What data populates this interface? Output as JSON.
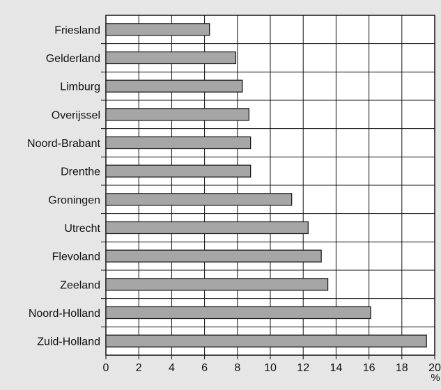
{
  "chart_data": {
    "type": "bar",
    "orientation": "horizontal",
    "categories": [
      "Friesland",
      "Gelderland",
      "Limburg",
      "Overijssel",
      "Noord-Brabant",
      "Drenthe",
      "Groningen",
      "Utrecht",
      "Flevoland",
      "Zeeland",
      "Noord-Holland",
      "Zuid-Holland"
    ],
    "values": [
      6.3,
      7.9,
      8.3,
      8.7,
      8.8,
      8.8,
      11.3,
      12.3,
      13.1,
      13.5,
      16.1,
      19.5
    ],
    "title": "",
    "xlabel": "",
    "ylabel": "",
    "x_unit_label": "%",
    "xlim": [
      0,
      20
    ],
    "x_ticks": [
      "0",
      "2",
      "4",
      "6",
      "8",
      "10",
      "12",
      "14",
      "16",
      "18",
      "20"
    ],
    "grid": "vertical",
    "legend": "none",
    "colors": {
      "page_background": "#e6e6e6",
      "plot_background": "#ffffff",
      "bar_fill": "#a6a6a6",
      "bar_stroke": "#111111",
      "grid": "#111111",
      "text": "#111111"
    }
  }
}
